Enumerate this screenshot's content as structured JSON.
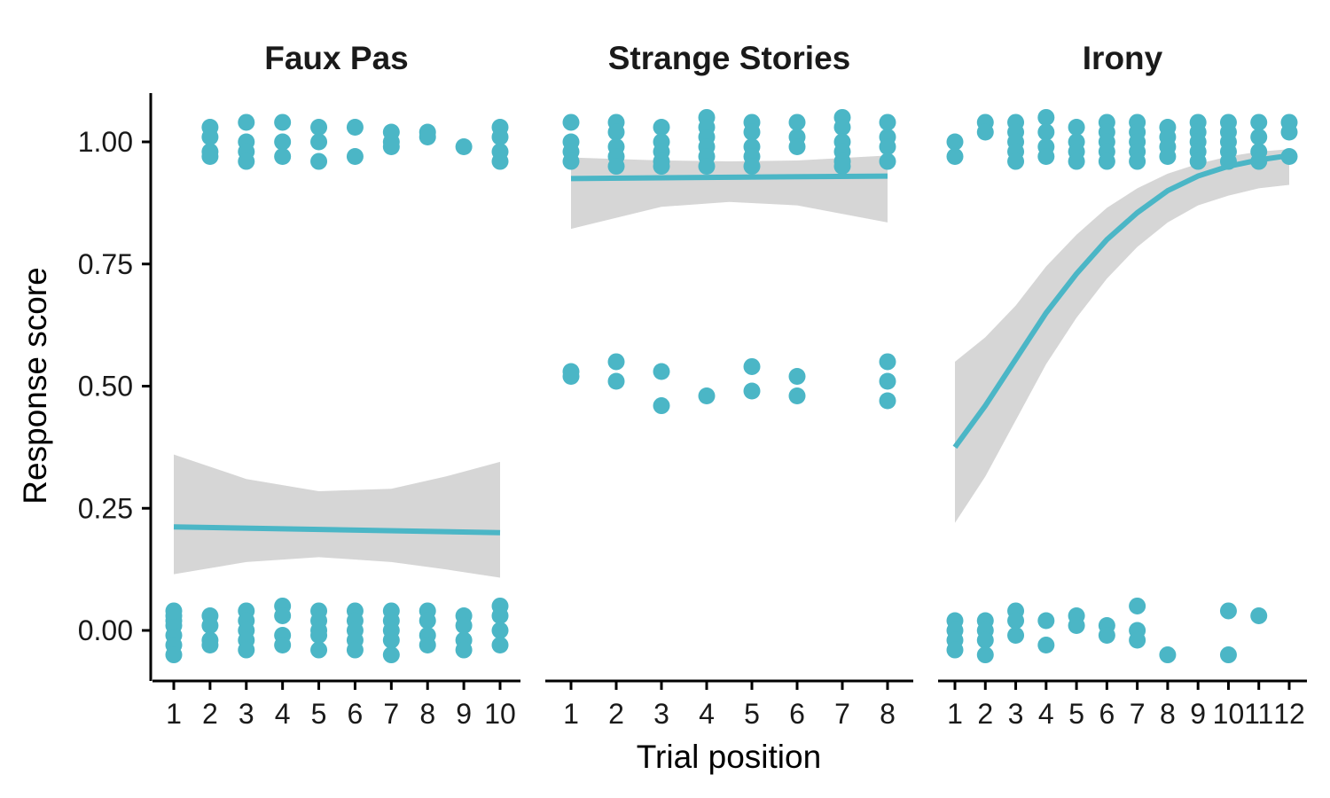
{
  "chart_data": {
    "type": "scatter",
    "xlabel": "Trial position",
    "ylabel": "Response score",
    "ylim": [
      -0.1,
      1.1
    ],
    "y_ticks": [
      "0.00",
      "0.25",
      "0.50",
      "0.75",
      "1.00"
    ],
    "point_color": "#4BB6C6",
    "ribbon_color": "#D6D6D6",
    "facets": [
      {
        "title": "Faux Pas",
        "x_ticks": [
          "1",
          "2",
          "3",
          "4",
          "5",
          "6",
          "7",
          "8",
          "9",
          "10"
        ],
        "points": [
          [
            1,
            0.03
          ],
          [
            1,
            0.01
          ],
          [
            1,
            -0.01
          ],
          [
            1,
            0.02
          ],
          [
            1,
            -0.03
          ],
          [
            1,
            -0.05
          ],
          [
            1,
            0.04
          ],
          [
            2,
            1.03
          ],
          [
            2,
            1.01
          ],
          [
            2,
            0.98
          ],
          [
            2,
            0.97
          ],
          [
            2,
            0.03
          ],
          [
            2,
            0.01
          ],
          [
            2,
            -0.02
          ],
          [
            2,
            -0.03
          ],
          [
            3,
            1.04
          ],
          [
            3,
            1.0
          ],
          [
            3,
            0.98
          ],
          [
            3,
            0.96
          ],
          [
            3,
            0.04
          ],
          [
            3,
            0.02
          ],
          [
            3,
            0.0
          ],
          [
            3,
            -0.02
          ],
          [
            3,
            -0.04
          ],
          [
            4,
            1.04
          ],
          [
            4,
            1.0
          ],
          [
            4,
            0.97
          ],
          [
            4,
            0.05
          ],
          [
            4,
            0.03
          ],
          [
            4,
            -0.01
          ],
          [
            4,
            -0.03
          ],
          [
            5,
            1.03
          ],
          [
            5,
            1.0
          ],
          [
            5,
            0.96
          ],
          [
            5,
            0.04
          ],
          [
            5,
            0.02
          ],
          [
            5,
            0.0
          ],
          [
            5,
            -0.01
          ],
          [
            5,
            -0.04
          ],
          [
            6,
            1.03
          ],
          [
            6,
            0.97
          ],
          [
            6,
            0.04
          ],
          [
            6,
            0.02
          ],
          [
            6,
            0.0
          ],
          [
            6,
            -0.02
          ],
          [
            6,
            -0.04
          ],
          [
            7,
            1.02
          ],
          [
            7,
            1.0
          ],
          [
            7,
            0.99
          ],
          [
            7,
            0.04
          ],
          [
            7,
            0.02
          ],
          [
            7,
            0.0
          ],
          [
            7,
            -0.02
          ],
          [
            7,
            -0.05
          ],
          [
            8,
            1.02
          ],
          [
            8,
            1.01
          ],
          [
            8,
            0.04
          ],
          [
            8,
            0.02
          ],
          [
            8,
            -0.01
          ],
          [
            8,
            -0.03
          ],
          [
            9,
            0.99
          ],
          [
            9,
            0.03
          ],
          [
            9,
            0.01
          ],
          [
            9,
            -0.02
          ],
          [
            9,
            -0.04
          ],
          [
            10,
            1.03
          ],
          [
            10,
            1.01
          ],
          [
            10,
            0.98
          ],
          [
            10,
            0.96
          ],
          [
            10,
            0.05
          ],
          [
            10,
            0.03
          ],
          [
            10,
            0.0
          ],
          [
            10,
            -0.03
          ]
        ],
        "fit": [
          [
            1,
            0.212
          ],
          [
            10,
            0.2
          ]
        ],
        "ribbon_upper": [
          [
            1,
            0.36
          ],
          [
            3,
            0.31
          ],
          [
            5,
            0.285
          ],
          [
            7,
            0.29
          ],
          [
            8.5,
            0.315
          ],
          [
            10,
            0.345
          ]
        ],
        "ribbon_lower": [
          [
            1,
            0.115
          ],
          [
            3,
            0.14
          ],
          [
            5,
            0.15
          ],
          [
            7,
            0.14
          ],
          [
            8.5,
            0.125
          ],
          [
            10,
            0.108
          ]
        ]
      },
      {
        "title": "Strange Stories",
        "x_ticks": [
          "1",
          "2",
          "3",
          "4",
          "5",
          "6",
          "7",
          "8"
        ],
        "points": [
          [
            1,
            1.04
          ],
          [
            1,
            1.0
          ],
          [
            1,
            0.98
          ],
          [
            1,
            0.96
          ],
          [
            1,
            0.53
          ],
          [
            1,
            0.52
          ],
          [
            2,
            1.04
          ],
          [
            2,
            1.02
          ],
          [
            2,
            0.99
          ],
          [
            2,
            0.97
          ],
          [
            2,
            0.95
          ],
          [
            2,
            0.55
          ],
          [
            2,
            0.51
          ],
          [
            3,
            1.03
          ],
          [
            3,
            1.0
          ],
          [
            3,
            0.98
          ],
          [
            3,
            0.96
          ],
          [
            3,
            0.95
          ],
          [
            3,
            0.53
          ],
          [
            3,
            0.46
          ],
          [
            4,
            1.05
          ],
          [
            4,
            1.03
          ],
          [
            4,
            1.01
          ],
          [
            4,
            0.99
          ],
          [
            4,
            0.97
          ],
          [
            4,
            0.95
          ],
          [
            4,
            0.48
          ],
          [
            5,
            1.04
          ],
          [
            5,
            1.02
          ],
          [
            5,
            0.99
          ],
          [
            5,
            0.97
          ],
          [
            5,
            0.95
          ],
          [
            5,
            0.54
          ],
          [
            5,
            0.49
          ],
          [
            6,
            1.04
          ],
          [
            6,
            1.01
          ],
          [
            6,
            0.99
          ],
          [
            6,
            0.52
          ],
          [
            6,
            0.48
          ],
          [
            7,
            1.05
          ],
          [
            7,
            1.03
          ],
          [
            7,
            1.0
          ],
          [
            7,
            0.98
          ],
          [
            7,
            0.96
          ],
          [
            7,
            0.95
          ],
          [
            8,
            1.04
          ],
          [
            8,
            1.01
          ],
          [
            8,
            0.99
          ],
          [
            8,
            0.96
          ],
          [
            8,
            0.55
          ],
          [
            8,
            0.51
          ],
          [
            8,
            0.47
          ]
        ],
        "fit": [
          [
            1,
            0.925
          ],
          [
            8,
            0.93
          ]
        ],
        "ribbon_upper": [
          [
            1,
            0.968
          ],
          [
            3,
            0.962
          ],
          [
            4.5,
            0.96
          ],
          [
            6,
            0.962
          ],
          [
            8,
            0.972
          ]
        ],
        "ribbon_lower": [
          [
            1,
            0.822
          ],
          [
            3,
            0.867
          ],
          [
            4.5,
            0.877
          ],
          [
            6,
            0.87
          ],
          [
            8,
            0.835
          ]
        ]
      },
      {
        "title": "Irony",
        "x_ticks": [
          "1",
          "2",
          "3",
          "4",
          "5",
          "6",
          "7",
          "8",
          "9",
          "10",
          "11",
          "12"
        ],
        "points": [
          [
            1,
            1.0
          ],
          [
            1,
            0.97
          ],
          [
            1,
            0.02
          ],
          [
            1,
            0.0
          ],
          [
            1,
            -0.02
          ],
          [
            1,
            -0.04
          ],
          [
            2,
            1.04
          ],
          [
            2,
            1.02
          ],
          [
            2,
            0.02
          ],
          [
            2,
            0.0
          ],
          [
            2,
            -0.02
          ],
          [
            2,
            -0.05
          ],
          [
            3,
            1.04
          ],
          [
            3,
            1.02
          ],
          [
            3,
            1.0
          ],
          [
            3,
            0.98
          ],
          [
            3,
            0.96
          ],
          [
            3,
            0.04
          ],
          [
            3,
            0.02
          ],
          [
            3,
            -0.01
          ],
          [
            4,
            1.05
          ],
          [
            4,
            1.02
          ],
          [
            4,
            0.99
          ],
          [
            4,
            0.97
          ],
          [
            4,
            0.02
          ],
          [
            4,
            -0.03
          ],
          [
            5,
            1.03
          ],
          [
            5,
            1.0
          ],
          [
            5,
            0.98
          ],
          [
            5,
            0.96
          ],
          [
            5,
            0.03
          ],
          [
            5,
            0.01
          ],
          [
            6,
            1.04
          ],
          [
            6,
            1.02
          ],
          [
            6,
            1.0
          ],
          [
            6,
            0.98
          ],
          [
            6,
            0.96
          ],
          [
            6,
            0.01
          ],
          [
            6,
            -0.01
          ],
          [
            7,
            1.04
          ],
          [
            7,
            1.02
          ],
          [
            7,
            1.0
          ],
          [
            7,
            0.98
          ],
          [
            7,
            0.96
          ],
          [
            7,
            0.05
          ],
          [
            7,
            0.0
          ],
          [
            7,
            -0.02
          ],
          [
            8,
            1.03
          ],
          [
            8,
            1.01
          ],
          [
            8,
            0.99
          ],
          [
            8,
            0.97
          ],
          [
            8,
            -0.05
          ],
          [
            9,
            1.04
          ],
          [
            9,
            1.02
          ],
          [
            9,
            1.0
          ],
          [
            9,
            0.98
          ],
          [
            9,
            0.96
          ],
          [
            10,
            1.04
          ],
          [
            10,
            1.02
          ],
          [
            10,
            1.0
          ],
          [
            10,
            0.98
          ],
          [
            10,
            0.96
          ],
          [
            10,
            0.04
          ],
          [
            10,
            -0.05
          ],
          [
            11,
            1.04
          ],
          [
            11,
            1.01
          ],
          [
            11,
            0.98
          ],
          [
            11,
            0.96
          ],
          [
            11,
            0.03
          ],
          [
            12,
            1.04
          ],
          [
            12,
            1.02
          ],
          [
            12,
            0.97
          ]
        ],
        "fit": [
          [
            1,
            0.375
          ],
          [
            2,
            0.46
          ],
          [
            3,
            0.555
          ],
          [
            4,
            0.65
          ],
          [
            5,
            0.73
          ],
          [
            6,
            0.8
          ],
          [
            7,
            0.855
          ],
          [
            8,
            0.9
          ],
          [
            9,
            0.93
          ],
          [
            10,
            0.95
          ],
          [
            11,
            0.963
          ],
          [
            12,
            0.972
          ]
        ],
        "ribbon_upper": [
          [
            1,
            0.55
          ],
          [
            2,
            0.6
          ],
          [
            3,
            0.665
          ],
          [
            4,
            0.745
          ],
          [
            5,
            0.81
          ],
          [
            6,
            0.865
          ],
          [
            7,
            0.905
          ],
          [
            8,
            0.935
          ],
          [
            9,
            0.955
          ],
          [
            10,
            0.97
          ],
          [
            11,
            0.98
          ],
          [
            12,
            0.985
          ]
        ],
        "ribbon_lower": [
          [
            1,
            0.22
          ],
          [
            2,
            0.315
          ],
          [
            3,
            0.43
          ],
          [
            4,
            0.545
          ],
          [
            5,
            0.64
          ],
          [
            6,
            0.72
          ],
          [
            7,
            0.785
          ],
          [
            8,
            0.835
          ],
          [
            9,
            0.87
          ],
          [
            10,
            0.89
          ],
          [
            11,
            0.905
          ],
          [
            12,
            0.912
          ]
        ]
      }
    ]
  }
}
